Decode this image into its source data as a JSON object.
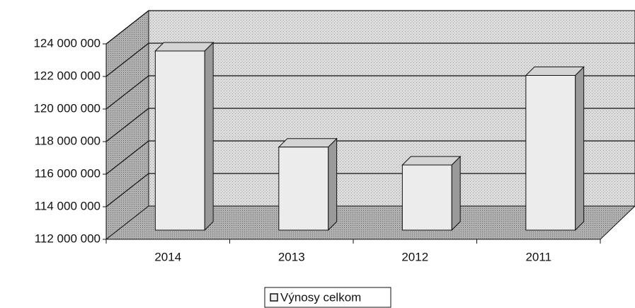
{
  "chart_data": {
    "type": "bar3d",
    "categories": [
      "2014",
      "2013",
      "2012",
      "2011"
    ],
    "series": [
      {
        "name": "Výnosy celkom",
        "color": "#ececec",
        "values": [
          123000000,
          117100000,
          116000000,
          121500000
        ]
      }
    ],
    "ylim": [
      112000000,
      124000000
    ],
    "yticks": [
      {
        "value": 112000000,
        "label": "112 000 000"
      },
      {
        "value": 114000000,
        "label": "114 000 000"
      },
      {
        "value": 116000000,
        "label": "116 000 000"
      },
      {
        "value": 118000000,
        "label": "118 000 000"
      },
      {
        "value": 120000000,
        "label": "120 000 000"
      },
      {
        "value": 122000000,
        "label": "122 000 000"
      },
      {
        "value": 124000000,
        "label": "124 000 000"
      }
    ],
    "grid": true,
    "legend": "bottom"
  }
}
